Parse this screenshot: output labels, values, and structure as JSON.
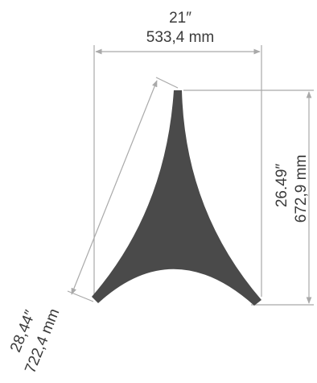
{
  "colors": {
    "shape": "#4a4a4a",
    "dimension_line": "#a9a9a9",
    "text": "#3a3a3a"
  },
  "dimensions": {
    "width_in": "21″",
    "width_mm": "533,4 mm",
    "height_in": "26.49″",
    "height_mm": "672,9 mm",
    "diagonal_in": "28,44″",
    "diagonal_mm": "722,4 mm"
  }
}
